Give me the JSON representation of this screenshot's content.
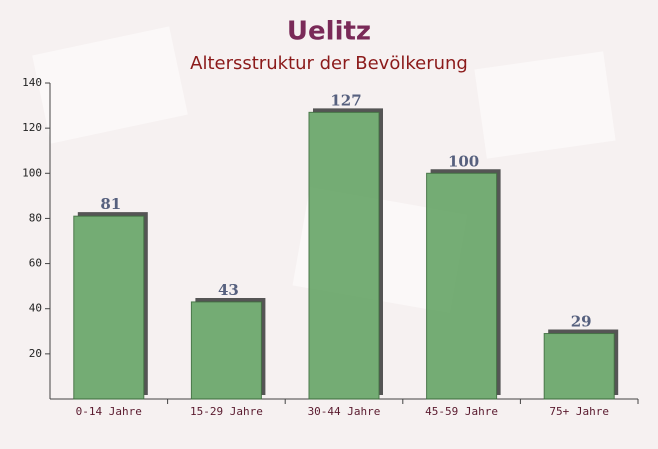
{
  "chart_data": {
    "type": "bar",
    "title": "Uelitz",
    "subtitle": "Altersstruktur der Bevölkerung",
    "categories": [
      "0-14 Jahre",
      "15-29 Jahre",
      "30-44 Jahre",
      "45-59 Jahre",
      "75+ Jahre"
    ],
    "values": [
      81,
      43,
      127,
      100,
      29
    ],
    "color": "#6aa76a",
    "ylim": [
      0,
      140
    ],
    "yticks": [
      20,
      40,
      60,
      80,
      100,
      120,
      140
    ],
    "grid": false
  }
}
